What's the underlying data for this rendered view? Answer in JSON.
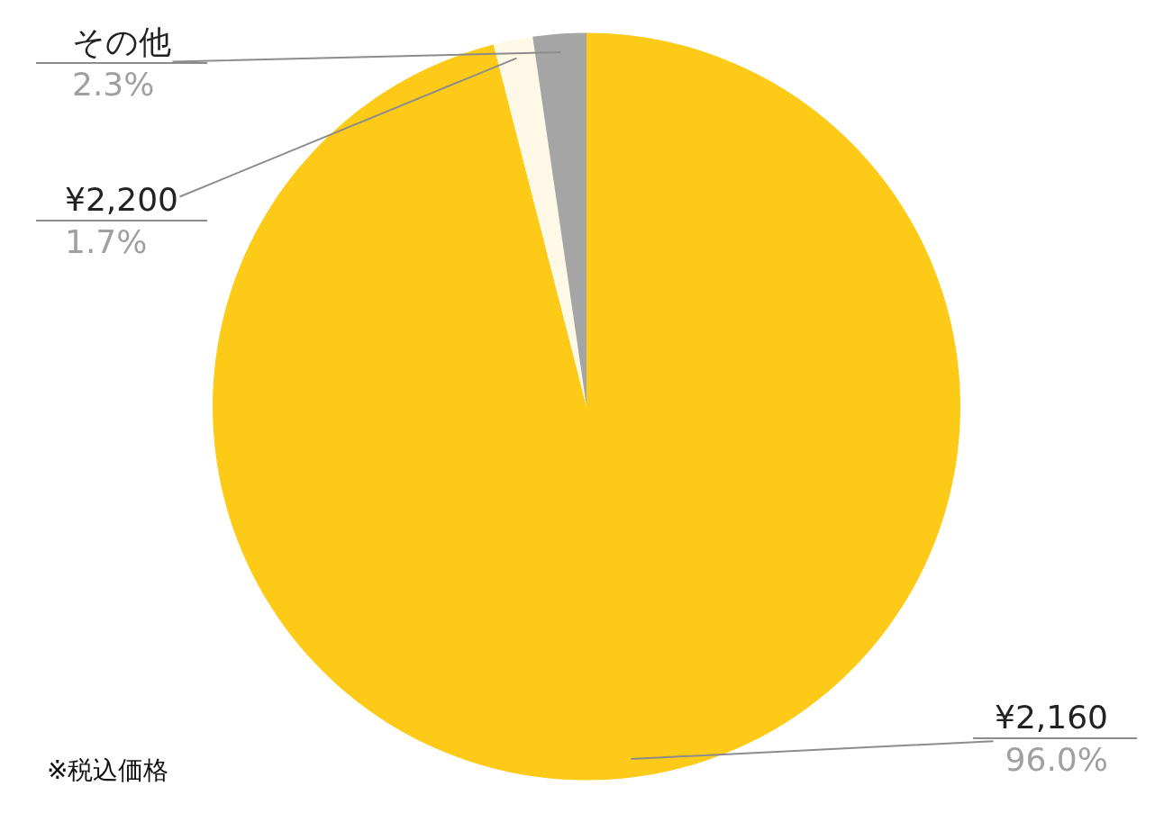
{
  "chart_data": {
    "type": "pie",
    "categories": [
      "¥2,160",
      "¥2,200",
      "その他"
    ],
    "values": [
      96.0,
      1.7,
      2.3
    ],
    "colors": [
      "#fcca17",
      "#fef9e7",
      "#a5a5a5"
    ],
    "value_labels": [
      "96.0%",
      "1.7%",
      "2.3%"
    ],
    "annotations": [
      "※税込価格"
    ]
  }
}
